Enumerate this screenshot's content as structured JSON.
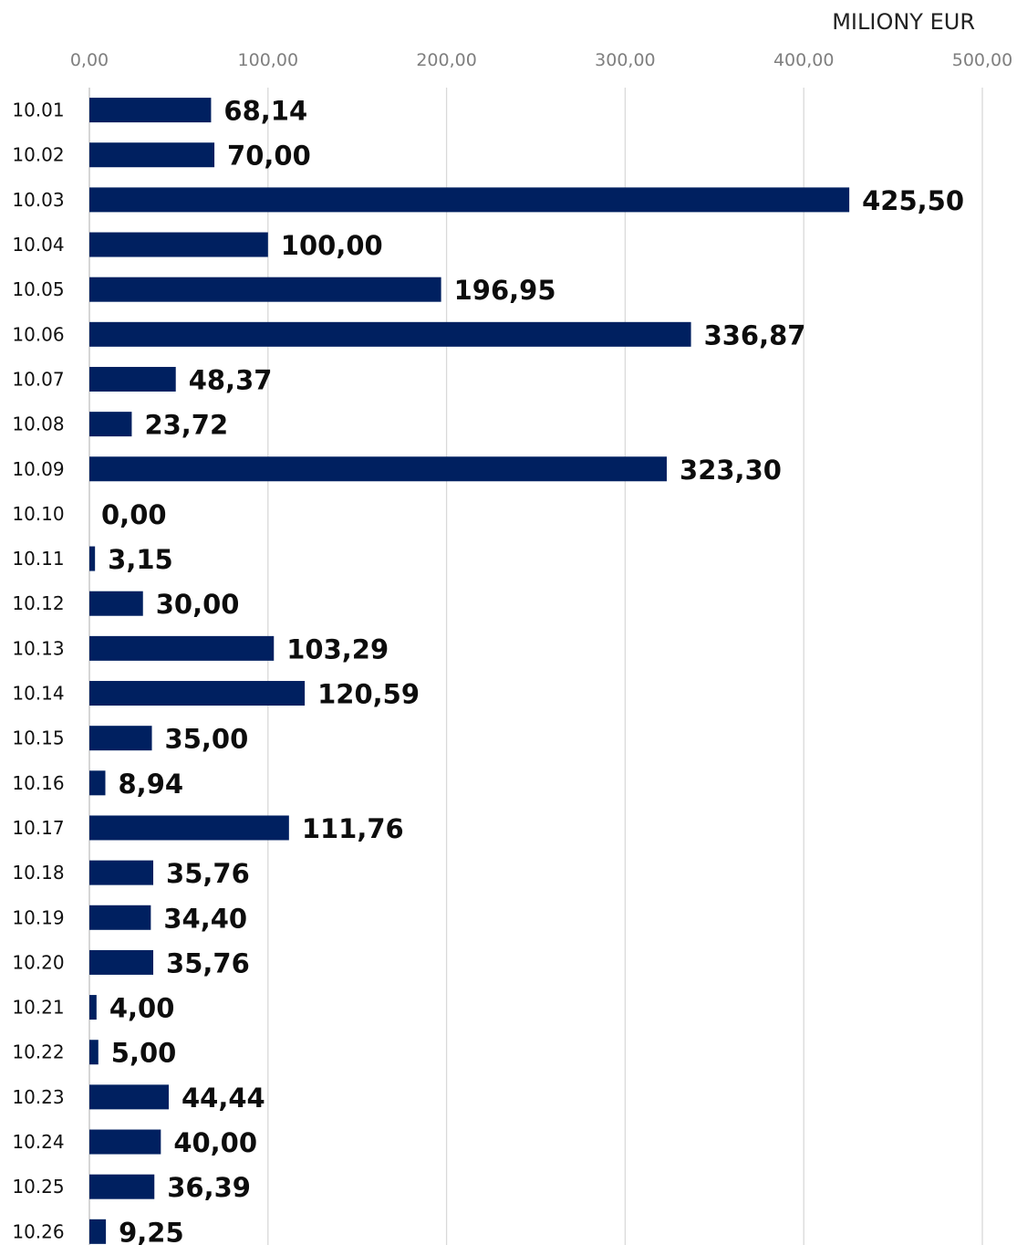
{
  "chart_data": {
    "type": "bar",
    "orientation": "horizontal",
    "unit_label": "MILIONY EUR",
    "xlim": [
      0,
      500
    ],
    "x_ticks": [
      "0,00",
      "100,00",
      "200,00",
      "300,00",
      "400,00",
      "500,00"
    ],
    "x_axis_position": "top",
    "grid": true,
    "bar_color": "#002060",
    "categories": [
      "10.01",
      "10.02",
      "10.03",
      "10.04",
      "10.05",
      "10.06",
      "10.07",
      "10.08",
      "10.09",
      "10.10",
      "10.11",
      "10.12",
      "10.13",
      "10.14",
      "10.15",
      "10.16",
      "10.17",
      "10.18",
      "10.19",
      "10.20",
      "10.21",
      "10.22",
      "10.23",
      "10.24",
      "10.25",
      "10.26"
    ],
    "values": [
      68.14,
      70.0,
      425.5,
      100.0,
      196.95,
      336.87,
      48.37,
      23.72,
      323.3,
      0.0,
      3.15,
      30.0,
      103.29,
      120.59,
      35.0,
      8.94,
      111.76,
      35.76,
      34.4,
      35.76,
      4.0,
      5.0,
      44.44,
      40.0,
      36.39,
      9.25
    ],
    "value_labels": [
      "68,14",
      "70,00",
      "425,50",
      "100,00",
      "196,95",
      "336,87",
      "48,37",
      "23,72",
      "323,30",
      "0,00",
      "3,15",
      "30,00",
      "103,29",
      "120,59",
      "35,00",
      "8,94",
      "111,76",
      "35,76",
      "34,40",
      "35,76",
      "4,00",
      "5,00",
      "44,44",
      "40,00",
      "36,39",
      "9,25"
    ]
  }
}
